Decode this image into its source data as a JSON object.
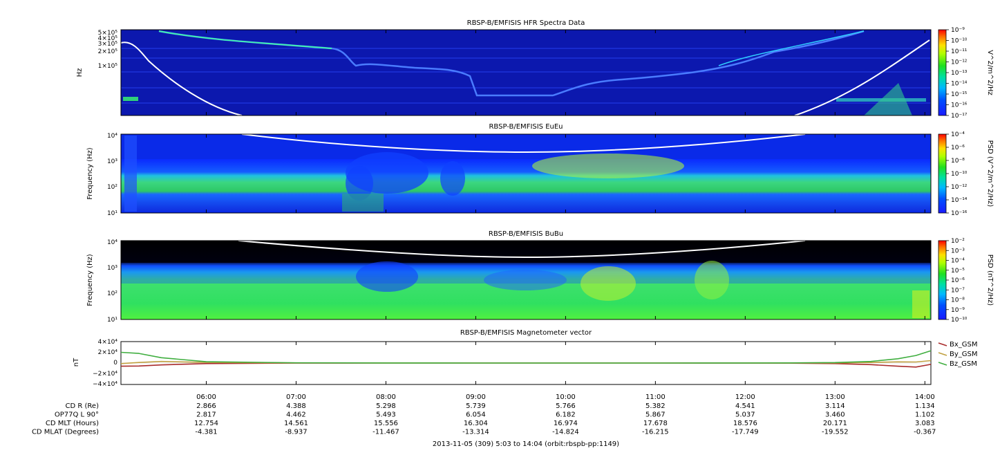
{
  "panels": [
    {
      "title": "RBSP-B/EMFISIS  HFR Spectra Data",
      "ylabel": "Hz",
      "yticks": [
        "5×10⁵",
        "4×10⁵",
        "3×10⁵",
        "2×10⁵",
        "1×10⁵"
      ],
      "colorbar_label": "V^2/m^2/Hz",
      "colorbar_ticks": [
        "10⁻⁹",
        "10⁻¹⁰",
        "10⁻¹¹",
        "10⁻¹²",
        "10⁻¹³",
        "10⁻¹⁴",
        "10⁻¹⁵",
        "10⁻¹⁶",
        "10⁻¹⁷"
      ]
    },
    {
      "title": "RBSP-B/EMFISIS  EuEu",
      "ylabel": "Frequency (Hz)",
      "yticks": [
        "10⁴",
        "10³",
        "10²",
        "10¹"
      ],
      "colorbar_label": "PSD (V^2/m^2/Hz)",
      "colorbar_ticks": [
        "10⁻⁴",
        "10⁻⁶",
        "10⁻⁸",
        "10⁻¹⁰",
        "10⁻¹²",
        "10⁻¹⁴",
        "10⁻¹⁶"
      ]
    },
    {
      "title": "RBSP-B/EMFISIS  BuBu",
      "ylabel": "Frequency (Hz)",
      "yticks": [
        "10⁴",
        "10³",
        "10²",
        "10¹"
      ],
      "colorbar_label": "PSD (nT^2/Hz)",
      "colorbar_ticks": [
        "10⁻²",
        "10⁻³",
        "10⁻⁴",
        "10⁻⁵",
        "10⁻⁶",
        "10⁻⁷",
        "10⁻⁸",
        "10⁻⁹",
        "10⁻¹⁰"
      ]
    }
  ],
  "chart_data": {
    "type": "line",
    "title": "RBSP-B/EMFISIS  Magnetometer vector",
    "ylabel": "nT",
    "ylim": [
      -40000,
      40000
    ],
    "yticks": [
      "4×10⁴",
      "2×10⁴",
      "0",
      "−2×10⁴",
      "−4×10⁴"
    ],
    "x": [
      5.05,
      5.25,
      5.5,
      6.0,
      7.0,
      8.0,
      9.0,
      10.0,
      11.0,
      12.0,
      12.5,
      13.0,
      13.4,
      13.7,
      13.9,
      14.067
    ],
    "series": [
      {
        "name": "Bx_GSM",
        "color": "#a82a2a",
        "values": [
          -6000,
          -5500,
          -3500,
          -1000,
          -150,
          -50,
          0,
          0,
          0,
          -100,
          -300,
          -1000,
          -3000,
          -6000,
          -7500,
          -2500
        ]
      },
      {
        "name": "By_GSM",
        "color": "#c0a040",
        "values": [
          -1000,
          1000,
          3000,
          1200,
          250,
          80,
          20,
          10,
          0,
          0,
          100,
          300,
          1000,
          2200,
          2000,
          4500
        ]
      },
      {
        "name": "Bz_GSM",
        "color": "#3fae3f",
        "values": [
          20000,
          18000,
          10000,
          2500,
          400,
          100,
          20,
          10,
          10,
          80,
          300,
          900,
          3000,
          8000,
          14000,
          23000
        ]
      }
    ]
  },
  "x_axis": {
    "start_hour": 5.05,
    "end_hour": 14.067,
    "ticks": [
      {
        "hour": 6,
        "label": "06:00"
      },
      {
        "hour": 7,
        "label": "07:00"
      },
      {
        "hour": 8,
        "label": "08:00"
      },
      {
        "hour": 9,
        "label": "09:00"
      },
      {
        "hour": 10,
        "label": "10:00"
      },
      {
        "hour": 11,
        "label": "11:00"
      },
      {
        "hour": 12,
        "label": "12:00"
      },
      {
        "hour": 13,
        "label": "13:00"
      },
      {
        "hour": 14,
        "label": "14:00"
      }
    ]
  },
  "ephemeris": [
    {
      "label": "CD R (Re)",
      "values": [
        "2.866",
        "4.388",
        "5.298",
        "5.739",
        "5.766",
        "5.382",
        "4.541",
        "3.114",
        "1.134"
      ]
    },
    {
      "label": "OP77Q L 90°",
      "values": [
        "2.817",
        "4.462",
        "5.493",
        "6.054",
        "6.182",
        "5.867",
        "5.037",
        "3.460",
        "1.102"
      ]
    },
    {
      "label": "CD MLT (Hours)",
      "values": [
        "12.754",
        "14.561",
        "15.556",
        "16.304",
        "16.974",
        "17.678",
        "18.576",
        "20.171",
        "3.083"
      ]
    },
    {
      "label": "CD MLAT (Degrees)",
      "values": [
        "-4.381",
        "-8.937",
        "-11.467",
        "-13.314",
        "-14.824",
        "-16.215",
        "-17.749",
        "-19.552",
        "-0.367"
      ]
    }
  ],
  "footer": "2013-11-05 (309) 5:03 to 14:04 (orbit:rbspb-pp:1149)"
}
